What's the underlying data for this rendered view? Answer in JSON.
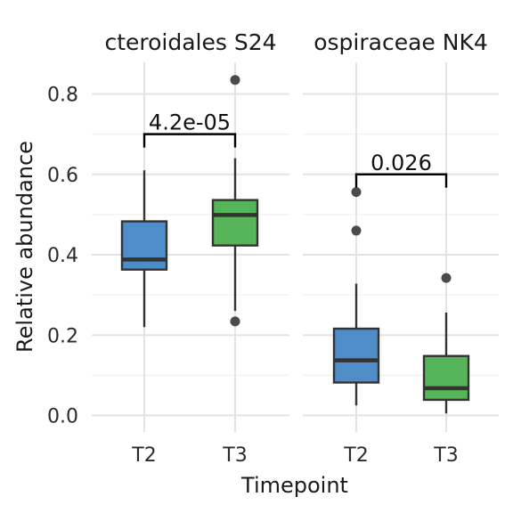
{
  "chart_data": {
    "type": "box",
    "ylabel": "Relative abundance",
    "xlabel": "Timepoint",
    "ylim": [
      -0.03,
      0.88
    ],
    "yticks": [
      0.0,
      0.2,
      0.4,
      0.6,
      0.8
    ],
    "ytick_labels": [
      "0.0",
      "0.2",
      "0.4",
      "0.6",
      "0.8"
    ],
    "grid": true,
    "categories": [
      "T2",
      "T3"
    ],
    "colors": {
      "T2": "#4f8dc9",
      "T3": "#57b559"
    },
    "panels": [
      {
        "title": "cteroidales S24",
        "boxes": [
          {
            "category": "T2",
            "lower_whisker": 0.22,
            "q1": 0.363,
            "median": 0.388,
            "q3": 0.483,
            "upper_whisker": 0.61,
            "outliers": []
          },
          {
            "category": "T3",
            "lower_whisker": 0.26,
            "q1": 0.423,
            "median": 0.499,
            "q3": 0.536,
            "upper_whisker": 0.64,
            "outliers": [
              0.835,
              0.234
            ]
          }
        ],
        "comparison": {
          "label": "4.2e-05",
          "y": 0.7
        }
      },
      {
        "title": "ospiraceae NK4",
        "boxes": [
          {
            "category": "T2",
            "lower_whisker": 0.025,
            "q1": 0.082,
            "median": 0.137,
            "q3": 0.216,
            "upper_whisker": 0.328,
            "outliers": [
              0.556,
              0.46
            ]
          },
          {
            "category": "T3",
            "lower_whisker": 0.005,
            "q1": 0.039,
            "median": 0.068,
            "q3": 0.148,
            "upper_whisker": 0.256,
            "outliers": [
              0.342
            ]
          }
        ],
        "comparison": {
          "label": "0.026",
          "y": 0.6
        }
      }
    ]
  }
}
